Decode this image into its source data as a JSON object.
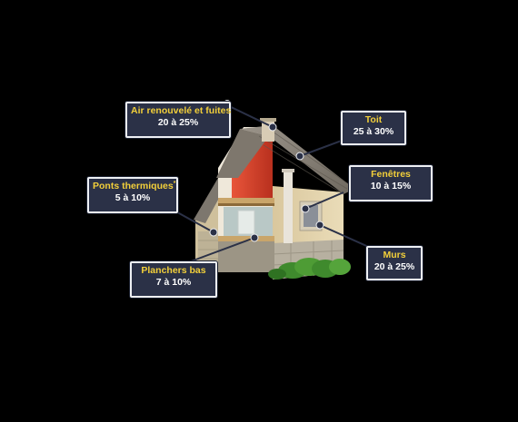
{
  "labels": [
    {
      "id": "air",
      "title": "Air renouvelé et fuites",
      "sup": "",
      "value": "20 à 25%"
    },
    {
      "id": "toit",
      "title": "Toit",
      "sup": "",
      "value": "25 à 30%"
    },
    {
      "id": "ponts",
      "title": "Ponts thermiques",
      "sup": "*",
      "value": "5 à 10%"
    },
    {
      "id": "fenetres",
      "title": "Fenêtres",
      "sup": "",
      "value": "10 à 15%"
    },
    {
      "id": "planchers",
      "title": "Planchers bas",
      "sup": "",
      "value": "7 à 10%"
    },
    {
      "id": "murs",
      "title": "Murs",
      "sup": "",
      "value": "20 à 25%"
    }
  ],
  "colors": {
    "label_bg": "#2b3147",
    "label_border": "#eef0f4",
    "title": "#f2cf3a",
    "value": "#ffffff",
    "roof": "#8a8378",
    "wall": "#e3d3ac",
    "stone": "#b7b0a0",
    "interior_red": "#d9432c",
    "hedge": "#3f8a2d"
  }
}
